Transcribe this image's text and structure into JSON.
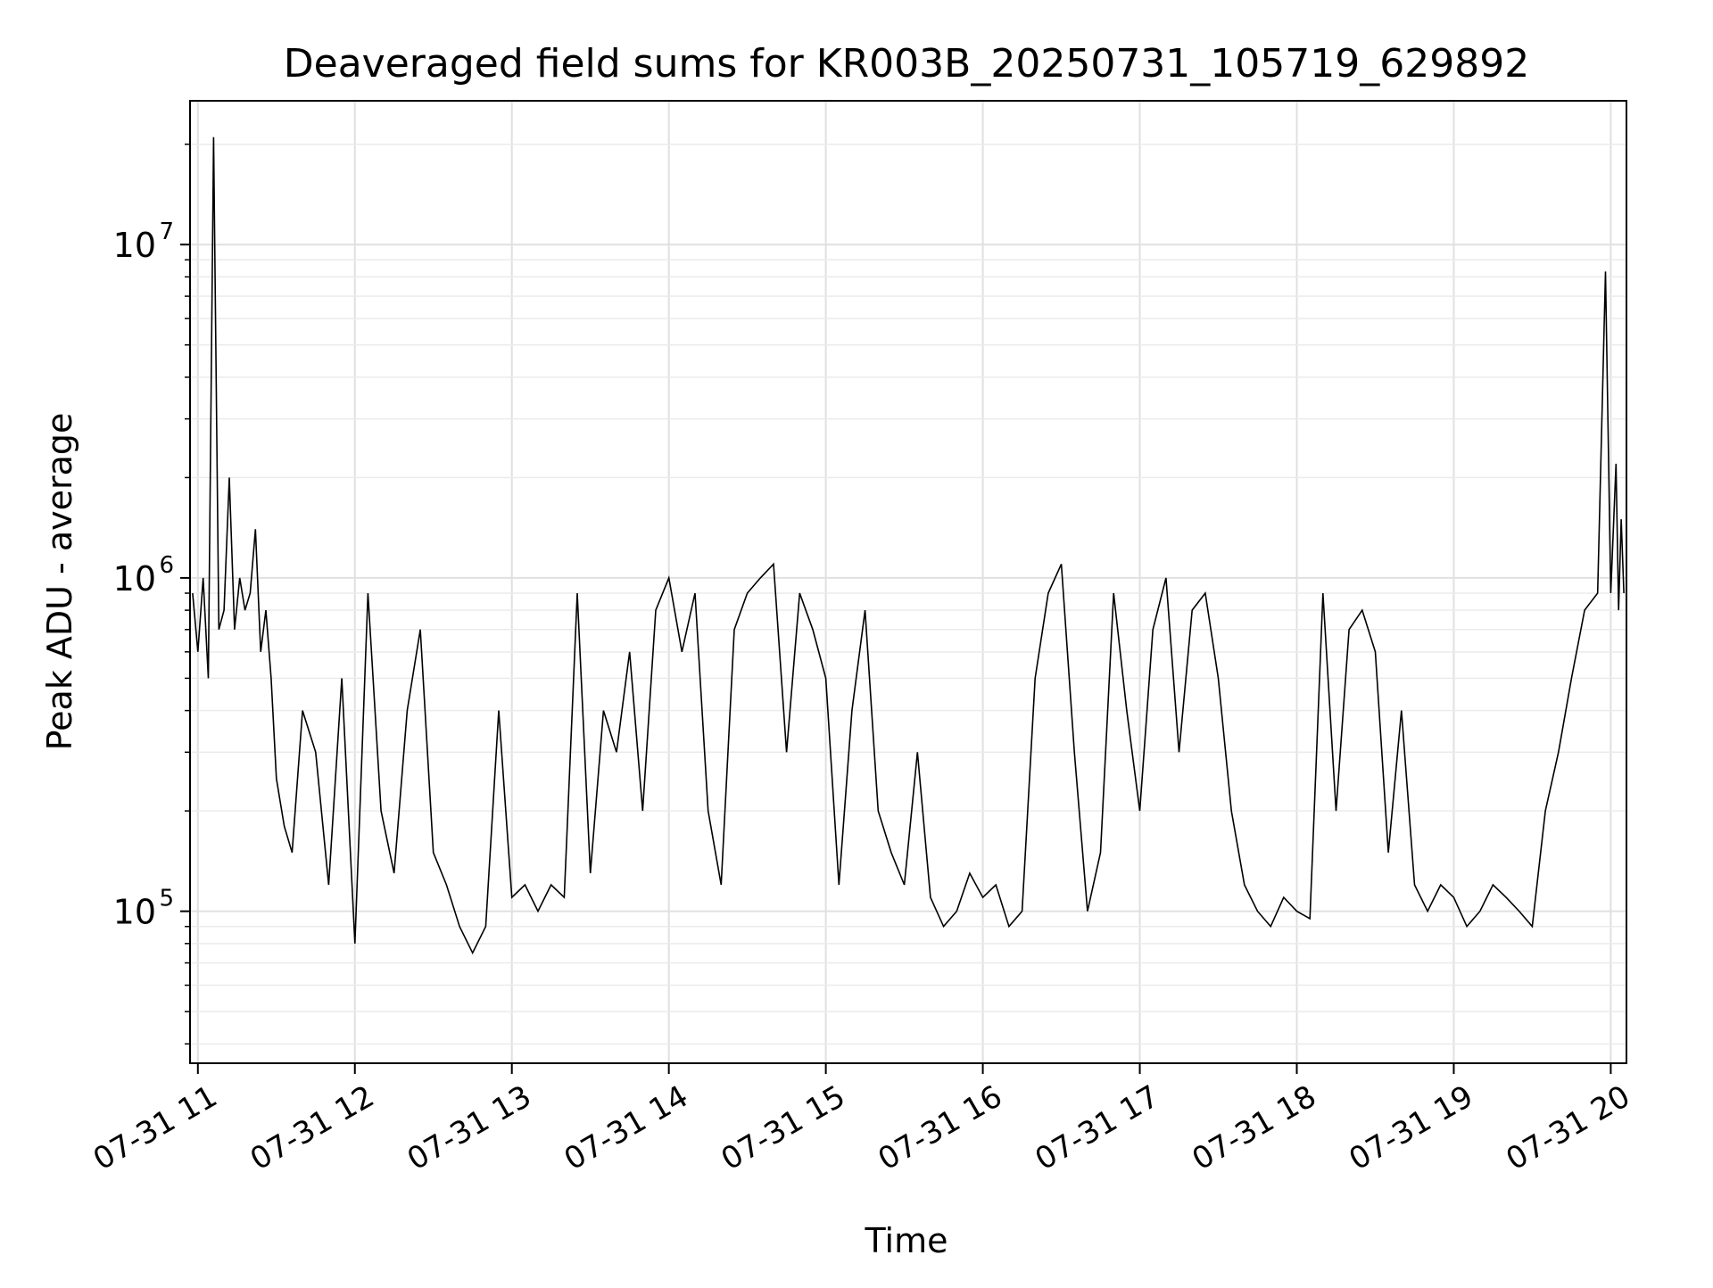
{
  "chart_data": {
    "type": "line",
    "title": "Deaveraged field sums for KR003B_20250731_105719_629892",
    "xlabel": "Time",
    "ylabel": "Peak ADU - average",
    "xlim": [
      "2025-07-31 10:57",
      "2025-07-31 20:06"
    ],
    "ylim": [
      35000,
      27000000
    ],
    "yscale": "log",
    "grid": true,
    "line_color": "#000000",
    "x_ticks": [
      {
        "value": "2025-07-31 11:00",
        "label": "07-31 11"
      },
      {
        "value": "2025-07-31 12:00",
        "label": "07-31 12"
      },
      {
        "value": "2025-07-31 13:00",
        "label": "07-31 13"
      },
      {
        "value": "2025-07-31 14:00",
        "label": "07-31 14"
      },
      {
        "value": "2025-07-31 15:00",
        "label": "07-31 15"
      },
      {
        "value": "2025-07-31 16:00",
        "label": "07-31 16"
      },
      {
        "value": "2025-07-31 17:00",
        "label": "07-31 17"
      },
      {
        "value": "2025-07-31 18:00",
        "label": "07-31 18"
      },
      {
        "value": "2025-07-31 19:00",
        "label": "07-31 19"
      },
      {
        "value": "2025-07-31 20:00",
        "label": "07-31 20"
      }
    ],
    "y_ticks": [
      {
        "value": 100000,
        "base": "10",
        "exp": "5"
      },
      {
        "value": 1000000,
        "base": "10",
        "exp": "6"
      },
      {
        "value": 10000000,
        "base": "10",
        "exp": "7"
      }
    ],
    "series": [
      {
        "x": [
          "2025-07-31 10:58",
          "2025-07-31 11:00",
          "2025-07-31 11:02",
          "2025-07-31 11:04",
          "2025-07-31 11:06",
          "2025-07-31 11:08",
          "2025-07-31 11:10",
          "2025-07-31 11:12",
          "2025-07-31 11:14",
          "2025-07-31 11:16",
          "2025-07-31 11:18",
          "2025-07-31 11:20",
          "2025-07-31 11:22",
          "2025-07-31 11:24",
          "2025-07-31 11:26",
          "2025-07-31 11:28",
          "2025-07-31 11:30",
          "2025-07-31 11:33",
          "2025-07-31 11:36",
          "2025-07-31 11:40",
          "2025-07-31 11:45",
          "2025-07-31 11:50",
          "2025-07-31 11:55",
          "2025-07-31 12:00",
          "2025-07-31 12:05",
          "2025-07-31 12:10",
          "2025-07-31 12:15",
          "2025-07-31 12:20",
          "2025-07-31 12:25",
          "2025-07-31 12:30",
          "2025-07-31 12:35",
          "2025-07-31 12:40",
          "2025-07-31 12:45",
          "2025-07-31 12:50",
          "2025-07-31 12:55",
          "2025-07-31 13:00",
          "2025-07-31 13:05",
          "2025-07-31 13:10",
          "2025-07-31 13:15",
          "2025-07-31 13:20",
          "2025-07-31 13:25",
          "2025-07-31 13:30",
          "2025-07-31 13:35",
          "2025-07-31 13:40",
          "2025-07-31 13:45",
          "2025-07-31 13:50",
          "2025-07-31 13:55",
          "2025-07-31 14:00",
          "2025-07-31 14:05",
          "2025-07-31 14:10",
          "2025-07-31 14:15",
          "2025-07-31 14:20",
          "2025-07-31 14:25",
          "2025-07-31 14:30",
          "2025-07-31 14:35",
          "2025-07-31 14:40",
          "2025-07-31 14:45",
          "2025-07-31 14:50",
          "2025-07-31 14:55",
          "2025-07-31 15:00",
          "2025-07-31 15:05",
          "2025-07-31 15:10",
          "2025-07-31 15:15",
          "2025-07-31 15:20",
          "2025-07-31 15:25",
          "2025-07-31 15:30",
          "2025-07-31 15:35",
          "2025-07-31 15:40",
          "2025-07-31 15:45",
          "2025-07-31 15:50",
          "2025-07-31 15:55",
          "2025-07-31 16:00",
          "2025-07-31 16:05",
          "2025-07-31 16:10",
          "2025-07-31 16:15",
          "2025-07-31 16:20",
          "2025-07-31 16:25",
          "2025-07-31 16:30",
          "2025-07-31 16:35",
          "2025-07-31 16:40",
          "2025-07-31 16:45",
          "2025-07-31 16:50",
          "2025-07-31 16:55",
          "2025-07-31 17:00",
          "2025-07-31 17:05",
          "2025-07-31 17:10",
          "2025-07-31 17:15",
          "2025-07-31 17:20",
          "2025-07-31 17:25",
          "2025-07-31 17:30",
          "2025-07-31 17:35",
          "2025-07-31 17:40",
          "2025-07-31 17:45",
          "2025-07-31 17:50",
          "2025-07-31 17:55",
          "2025-07-31 18:00",
          "2025-07-31 18:05",
          "2025-07-31 18:10",
          "2025-07-31 18:15",
          "2025-07-31 18:20",
          "2025-07-31 18:25",
          "2025-07-31 18:30",
          "2025-07-31 18:35",
          "2025-07-31 18:40",
          "2025-07-31 18:45",
          "2025-07-31 18:50",
          "2025-07-31 18:55",
          "2025-07-31 19:00",
          "2025-07-31 19:05",
          "2025-07-31 19:10",
          "2025-07-31 19:15",
          "2025-07-31 19:20",
          "2025-07-31 19:25",
          "2025-07-31 19:30",
          "2025-07-31 19:35",
          "2025-07-31 19:40",
          "2025-07-31 19:45",
          "2025-07-31 19:50",
          "2025-07-31 19:55",
          "2025-07-31 19:58",
          "2025-07-31 20:00",
          "2025-07-31 20:02",
          "2025-07-31 20:03",
          "2025-07-31 20:04",
          "2025-07-31 20:05"
        ],
        "y": [
          900000,
          600000,
          1000000,
          500000,
          21000000,
          700000,
          800000,
          2000000,
          700000,
          1000000,
          800000,
          900000,
          1400000,
          600000,
          800000,
          500000,
          250000,
          180000,
          150000,
          400000,
          300000,
          120000,
          500000,
          80000,
          900000,
          200000,
          130000,
          400000,
          700000,
          150000,
          120000,
          90000,
          75000,
          90000,
          400000,
          110000,
          120000,
          100000,
          120000,
          110000,
          900000,
          130000,
          400000,
          300000,
          600000,
          200000,
          800000,
          1000000,
          600000,
          900000,
          200000,
          120000,
          700000,
          900000,
          1000000,
          1100000,
          300000,
          900000,
          700000,
          500000,
          120000,
          400000,
          800000,
          200000,
          150000,
          120000,
          300000,
          110000,
          90000,
          100000,
          130000,
          110000,
          120000,
          90000,
          100000,
          500000,
          900000,
          1100000,
          300000,
          100000,
          150000,
          900000,
          400000,
          200000,
          700000,
          1000000,
          300000,
          800000,
          900000,
          500000,
          200000,
          120000,
          100000,
          90000,
          110000,
          100000,
          95000,
          900000,
          200000,
          700000,
          800000,
          600000,
          150000,
          400000,
          120000,
          100000,
          120000,
          110000,
          90000,
          100000,
          120000,
          110000,
          100000,
          90000,
          200000,
          300000,
          500000,
          800000,
          900000,
          8300000,
          900000,
          2200000,
          800000,
          1500000,
          900000
        ]
      }
    ]
  }
}
